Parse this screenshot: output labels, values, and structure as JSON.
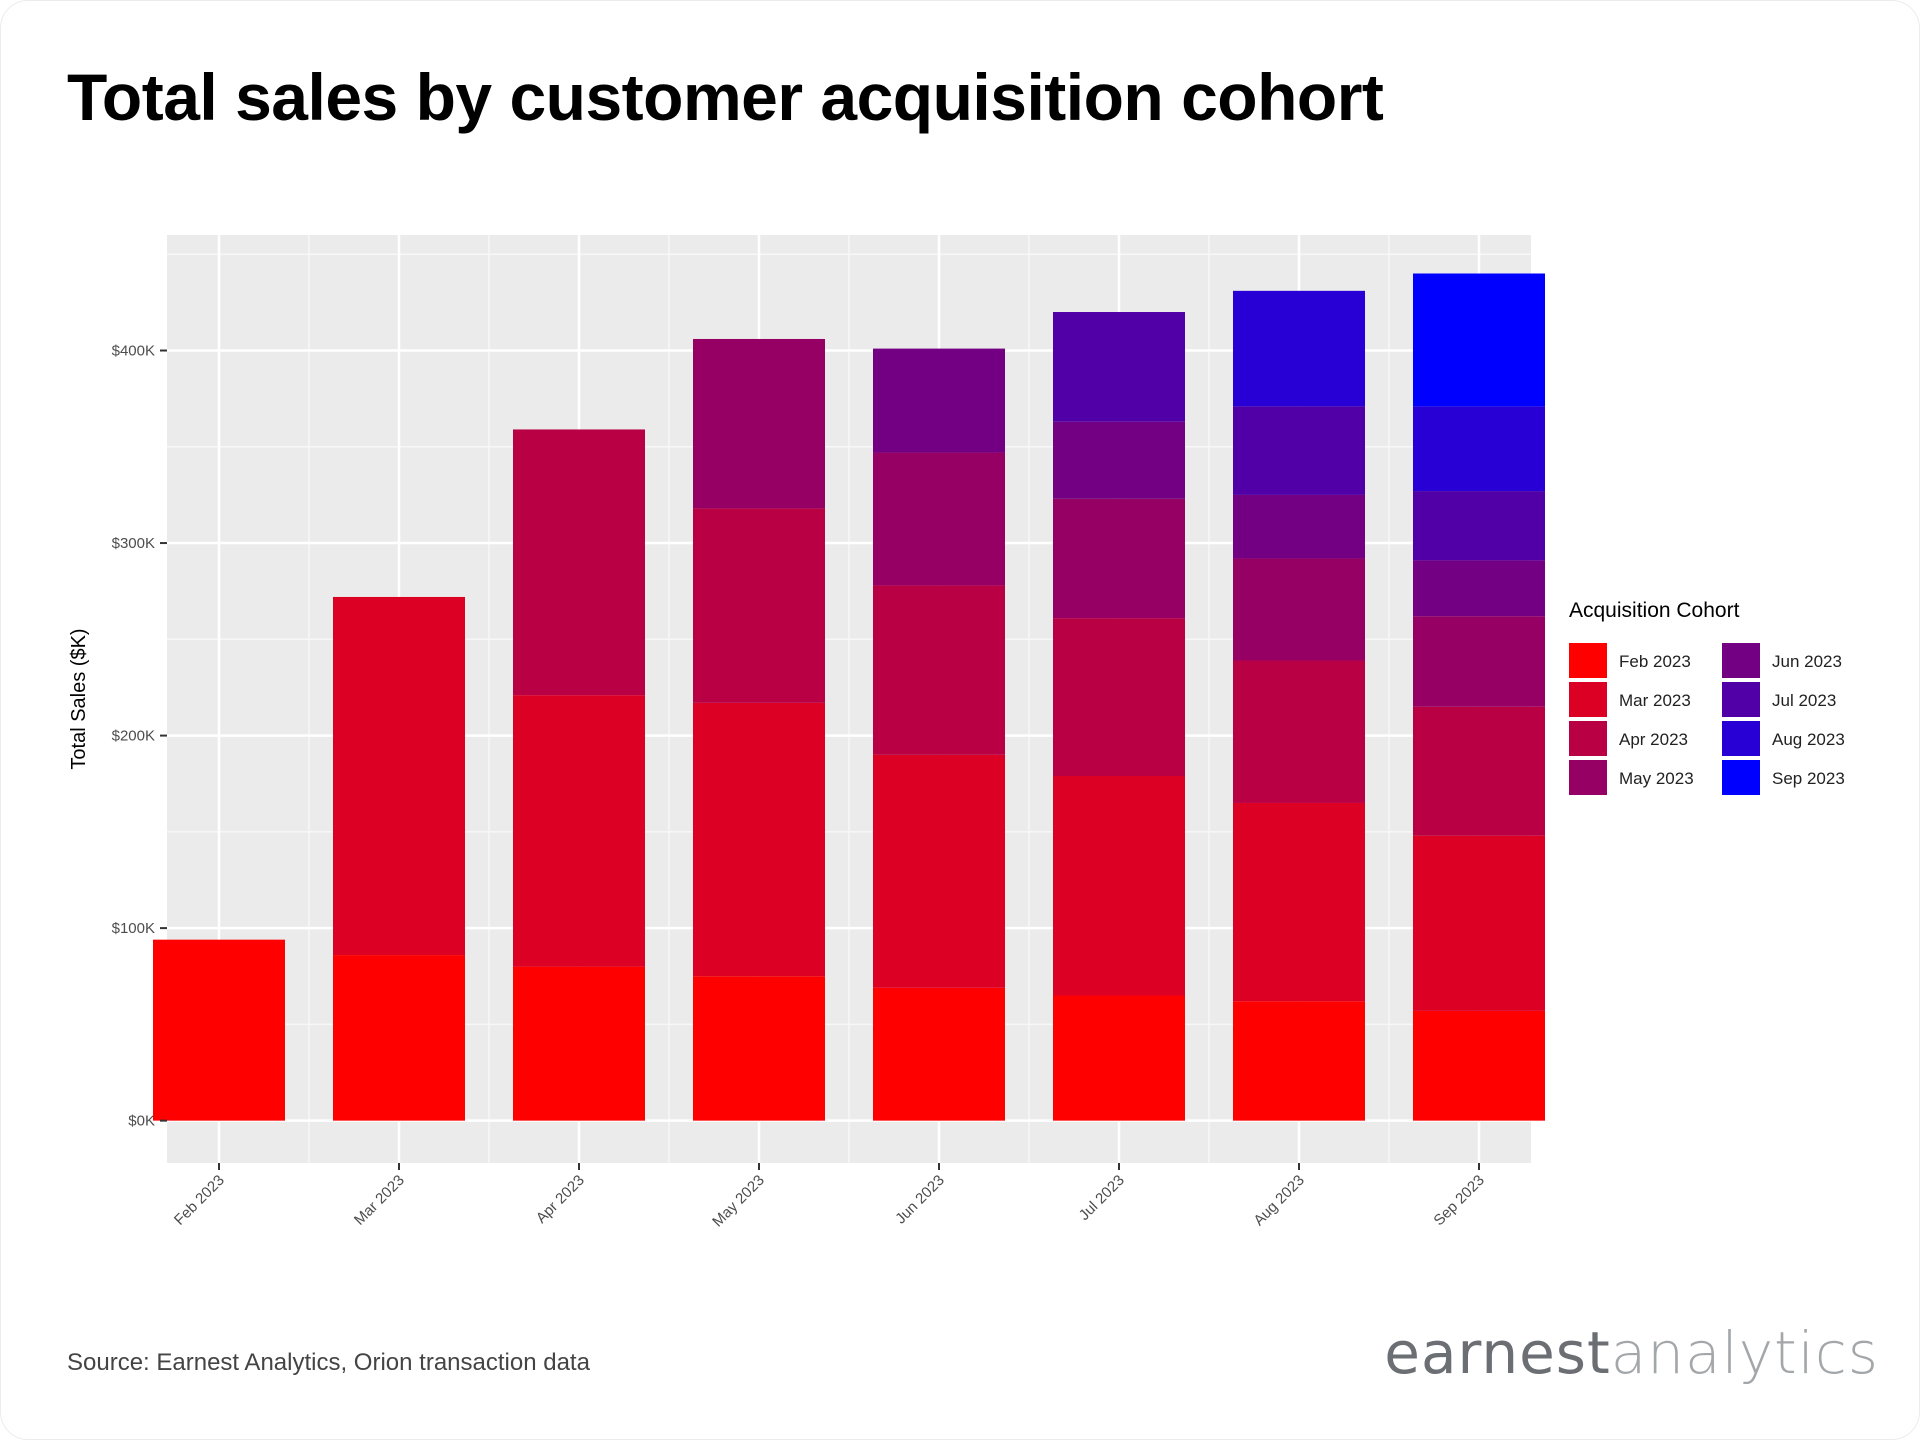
{
  "title": "Total sales by customer acquisition cohort",
  "source": "Source: Earnest Analytics, Orion transaction data",
  "logo": {
    "part1": "earnest",
    "part2": "analytics"
  },
  "chart_data": {
    "type": "bar",
    "stacked": true,
    "categories": [
      "Feb 2023",
      "Mar 2023",
      "Apr 2023",
      "May 2023",
      "Jun 2023",
      "Jul 2023",
      "Aug 2023",
      "Sep 2023"
    ],
    "ylabel": "Total Sales ($K)",
    "xlabel": "",
    "ylim": [
      -22,
      460
    ],
    "yticks": [
      {
        "value": 0,
        "label": "$0K"
      },
      {
        "value": 100,
        "label": "$100K"
      },
      {
        "value": 200,
        "label": "$200K"
      },
      {
        "value": 300,
        "label": "$300K"
      },
      {
        "value": 400,
        "label": "$400K"
      }
    ],
    "grid": true,
    "background": "#ebebeb",
    "legend": {
      "title": "Acquisition Cohort",
      "placement": "right"
    },
    "series": [
      {
        "name": "Feb 2023",
        "color": "#ff0000",
        "values": [
          94,
          86,
          80,
          75,
          69,
          65,
          62,
          57
        ]
      },
      {
        "name": "Mar 2023",
        "color": "#dc0025",
        "values": [
          null,
          186,
          141,
          142,
          121,
          114,
          103,
          91
        ]
      },
      {
        "name": "Apr 2023",
        "color": "#b90045",
        "values": [
          null,
          null,
          138,
          101,
          88,
          82,
          74,
          67
        ]
      },
      {
        "name": "May 2023",
        "color": "#960064",
        "values": [
          null,
          null,
          null,
          88,
          69,
          62,
          53,
          47
        ]
      },
      {
        "name": "Jun 2023",
        "color": "#730083",
        "values": [
          null,
          null,
          null,
          null,
          54,
          40,
          33,
          29
        ]
      },
      {
        "name": "Jul 2023",
        "color": "#5000a6",
        "values": [
          null,
          null,
          null,
          null,
          null,
          57,
          46,
          36
        ]
      },
      {
        "name": "Aug 2023",
        "color": "#2800d6",
        "values": [
          null,
          null,
          null,
          null,
          null,
          null,
          60,
          44
        ]
      },
      {
        "name": "Sep 2023",
        "color": "#0000ff",
        "values": [
          null,
          null,
          null,
          null,
          null,
          null,
          null,
          69
        ]
      }
    ]
  }
}
